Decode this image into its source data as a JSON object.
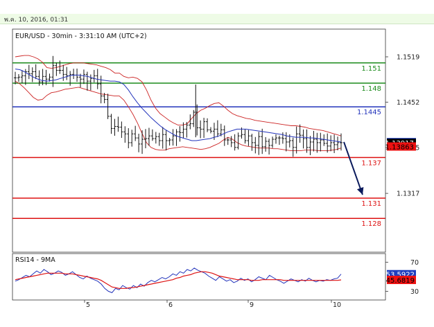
{
  "timestamp": "พ.ค. 10, 2016, 01:31",
  "chart_data": [
    {
      "type": "line",
      "title": "EUR/USD - 30min - 3:31:10 AM (UTC+2)",
      "ylim": [
        1.123,
        1.156
      ],
      "y_ticks": [
        "1.1519",
        "1.1452",
        "1.1385",
        "1.1317"
      ],
      "grid": false,
      "x_labels": [
        "5",
        "6",
        "9",
        "10"
      ],
      "levels": [
        {
          "label": "1.151",
          "value": 1.151,
          "color": "#1a8a1a"
        },
        {
          "label": "1.148",
          "value": 1.148,
          "color": "#1a8a1a"
        },
        {
          "label": "1.1445",
          "value": 1.1445,
          "color": "#2233bb"
        },
        {
          "label": "1.137",
          "value": 1.137,
          "color": "#dd1111"
        },
        {
          "label": "1.131",
          "value": 1.131,
          "color": "#dd1111"
        },
        {
          "label": "1.128",
          "value": 1.128,
          "color": "#dd1111"
        }
      ],
      "price_tags": [
        {
          "label": "1.13928",
          "value": 1.13928,
          "bg": "#1f3fbf",
          "fg": "#ffffff"
        },
        {
          "label": "1.13917",
          "value": 1.13917,
          "bg": "#000000",
          "fg": "#ffffff"
        },
        {
          "label": "1.13863",
          "value": 1.13863,
          "bg": "#ee1111",
          "fg": "#000000"
        }
      ],
      "projection": {
        "from": 1.1393,
        "to": 1.1315,
        "color": "#0a1a5c"
      },
      "moving_average": [
        1.1501,
        1.15,
        1.1497,
        1.1493,
        1.1489,
        1.1486,
        1.1484,
        1.1483,
        1.1484,
        1.1485,
        1.1487,
        1.1489,
        1.1491,
        1.1492,
        1.1492,
        1.1491,
        1.149,
        1.1488,
        1.1486,
        1.1485,
        1.1484,
        1.1483,
        1.1483,
        1.1482,
        1.1478,
        1.147,
        1.146,
        1.1451,
        1.1443,
        1.1436,
        1.1429,
        1.1423,
        1.1417,
        1.1412,
        1.1408,
        1.1404,
        1.1401,
        1.1399,
        1.1397,
        1.1395,
        1.1395,
        1.1396,
        1.1397,
        1.1398,
        1.14,
        1.1402,
        1.1405,
        1.1408,
        1.141,
        1.1412,
        1.1412,
        1.1412,
        1.1411,
        1.141,
        1.1409,
        1.1408,
        1.1407,
        1.1406,
        1.1405,
        1.1404,
        1.1402,
        1.1401,
        1.14,
        1.14,
        1.14,
        1.1399,
        1.1399,
        1.1398,
        1.1397,
        1.1396,
        1.1395,
        1.1394,
        1.1393
      ],
      "bands_upper": [
        1.1519,
        1.152,
        1.1521,
        1.1521,
        1.1519,
        1.1516,
        1.1511,
        1.1503,
        1.1502,
        1.1503,
        1.1505,
        1.1507,
        1.1509,
        1.151,
        1.151,
        1.151,
        1.1509,
        1.1508,
        1.1507,
        1.1505,
        1.1503,
        1.15,
        1.1495,
        1.1495,
        1.149,
        1.1488,
        1.1489,
        1.1487,
        1.1482,
        1.147,
        1.1455,
        1.1443,
        1.1435,
        1.143,
        1.1425,
        1.1421,
        1.1418,
        1.1418,
        1.142,
        1.1428,
        1.1435,
        1.144,
        1.1443,
        1.1447,
        1.145,
        1.1451,
        1.1446,
        1.144,
        1.1435,
        1.1432,
        1.143,
        1.1428,
        1.1427,
        1.1425,
        1.1424,
        1.1423,
        1.1422,
        1.1421,
        1.142,
        1.1419,
        1.1418,
        1.1417,
        1.1417,
        1.1416,
        1.1415,
        1.1413,
        1.1412,
        1.1411,
        1.141,
        1.1408,
        1.1406,
        1.1404,
        1.1402
      ],
      "bands_lower": [
        1.1483,
        1.1479,
        1.1473,
        1.1466,
        1.1459,
        1.1455,
        1.1456,
        1.1462,
        1.1466,
        1.1467,
        1.1469,
        1.1471,
        1.1472,
        1.1473,
        1.1474,
        1.1472,
        1.147,
        1.1468,
        1.1466,
        1.1464,
        1.1463,
        1.1462,
        1.1461,
        1.1461,
        1.1455,
        1.1445,
        1.1434,
        1.1421,
        1.1406,
        1.1392,
        1.1385,
        1.1382,
        1.1381,
        1.1381,
        1.1383,
        1.1384,
        1.1385,
        1.1386,
        1.1385,
        1.1384,
        1.1383,
        1.1382,
        1.1383,
        1.1385,
        1.1388,
        1.1391,
        1.1396,
        1.14,
        1.1397,
        1.1392,
        1.1389,
        1.1387,
        1.1386,
        1.1385,
        1.1384,
        1.1384,
        1.1384,
        1.1383,
        1.1383,
        1.1382,
        1.1381,
        1.138,
        1.138,
        1.138,
        1.1381,
        1.1381,
        1.1381,
        1.138,
        1.138,
        1.138,
        1.1381,
        1.1382,
        1.1384
      ],
      "price_path": [
        1.1488,
        1.1489,
        1.1491,
        1.1497,
        1.1494,
        1.1497,
        1.149,
        1.1482,
        1.149,
        1.1486,
        1.1489,
        1.1506,
        1.1499,
        1.1499,
        1.1493,
        1.1491,
        1.1493,
        1.1492,
        1.1489,
        1.1486,
        1.1493,
        1.1483,
        1.1487,
        1.1491,
        1.1479,
        1.1461,
        1.1456,
        1.1431,
        1.1413,
        1.1416,
        1.1415,
        1.1408,
        1.1405,
        1.1392,
        1.1405,
        1.1399,
        1.139,
        1.1397,
        1.1398,
        1.1402,
        1.1398,
        1.1401,
        1.1395,
        1.1404,
        1.1395,
        1.1396,
        1.1402,
        1.1408,
        1.1407,
        1.1412,
        1.1418,
        1.142,
        1.1437,
        1.1414,
        1.1412,
        1.1423,
        1.1411,
        1.1409,
        1.1412,
        1.1405,
        1.1411,
        1.1396,
        1.1396,
        1.1392,
        1.1385,
        1.1402,
        1.1404,
        1.1395,
        1.1402,
        1.1392,
        1.1388,
        1.1401,
        1.1386,
        1.1394,
        1.1388,
        1.1397,
        1.1399,
        1.1399,
        1.1398,
        1.1393,
        1.1395,
        1.1385,
        1.1405,
        1.1403,
        1.1398,
        1.1385,
        1.1393,
        1.1397,
        1.1392,
        1.1396,
        1.1391,
        1.1387,
        1.1392,
        1.1389,
        1.1392,
        1.1392
      ]
    },
    {
      "type": "line",
      "title": "RSI14 - 9MA",
      "ylim": [
        18,
        82
      ],
      "y_ticks": [
        "70",
        "30"
      ],
      "value_tags": [
        {
          "label": "53.5922",
          "value": 53.5922,
          "bg": "#1f3fbf",
          "fg": "#ffffff"
        },
        {
          "label": "45.6819",
          "value": 45.6819,
          "bg": "#ee1111",
          "fg": "#000000"
        }
      ],
      "series": [
        {
          "color": "#2233bb",
          "values": [
            44,
            46,
            49,
            52,
            50,
            54,
            58,
            55,
            60,
            57,
            53,
            55,
            58,
            56,
            52,
            54,
            57,
            53,
            49,
            47,
            51,
            48,
            46,
            44,
            40,
            34,
            30,
            28,
            34,
            32,
            38,
            35,
            33,
            38,
            35,
            40,
            37,
            42,
            45,
            43,
            46,
            49,
            47,
            50,
            54,
            52,
            57,
            55,
            60,
            58,
            62,
            59,
            57,
            55,
            51,
            48,
            45,
            50,
            47,
            44,
            46,
            42,
            44,
            48,
            45,
            47,
            43,
            46,
            50,
            48,
            46,
            52,
            49,
            46,
            44,
            41,
            44,
            47,
            45,
            43,
            46,
            44,
            48,
            45,
            43,
            45,
            44,
            46,
            45,
            47,
            48,
            53.6
          ]
        },
        {
          "color": "#dd1111",
          "values": [
            46,
            47,
            48,
            49,
            50,
            51,
            52,
            53,
            54,
            55,
            55,
            55,
            55,
            55,
            54,
            54,
            54,
            53,
            52,
            51,
            50,
            49,
            48,
            47,
            45,
            42,
            39,
            36,
            35,
            34,
            34,
            34,
            35,
            35,
            36,
            37,
            38,
            39,
            40,
            41,
            42,
            43,
            44,
            45,
            46,
            48,
            49,
            51,
            52,
            53,
            55,
            56,
            57,
            57,
            56,
            55,
            53,
            51,
            50,
            49,
            48,
            47,
            46,
            46,
            46,
            46,
            45,
            45,
            45,
            46,
            46,
            46,
            46,
            46,
            46,
            45,
            45,
            45,
            45,
            45,
            45,
            45,
            45,
            45,
            45,
            45,
            45,
            45,
            45,
            45,
            45,
            45.7
          ]
        }
      ]
    }
  ]
}
